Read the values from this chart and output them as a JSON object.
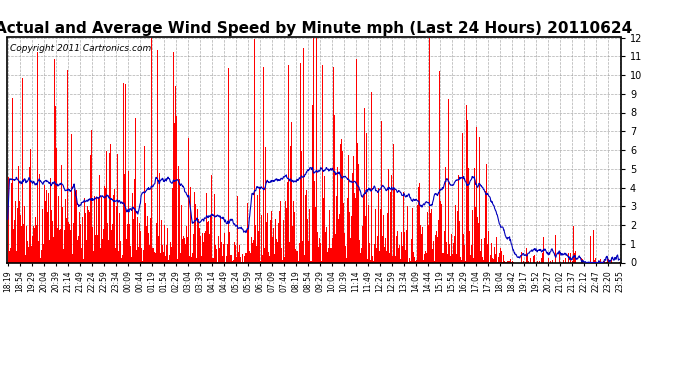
{
  "title": "Actual and Average Wind Speed by Minute mph (Last 24 Hours) 20110624",
  "copyright": "Copyright 2011 Cartronics.com",
  "ylim": [
    0.0,
    12.0
  ],
  "yticks": [
    0.0,
    1.0,
    2.0,
    3.0,
    4.0,
    5.0,
    6.0,
    7.0,
    8.0,
    9.0,
    10.0,
    11.0,
    12.0
  ],
  "bar_color": "#FF0000",
  "line_color": "#0000BB",
  "bg_color": "#FFFFFF",
  "grid_color": "#999999",
  "title_fontsize": 11,
  "copyright_fontsize": 6.5,
  "x_tick_labels": [
    "18:19",
    "18:54",
    "19:29",
    "20:04",
    "20:39",
    "21:14",
    "21:49",
    "22:24",
    "22:59",
    "23:34",
    "00:09",
    "00:44",
    "01:19",
    "01:54",
    "02:29",
    "03:04",
    "03:39",
    "04:14",
    "04:49",
    "05:24",
    "05:59",
    "06:34",
    "07:09",
    "07:44",
    "08:19",
    "08:54",
    "09:29",
    "10:04",
    "10:39",
    "11:14",
    "11:49",
    "12:24",
    "12:59",
    "13:34",
    "14:09",
    "14:44",
    "15:19",
    "15:54",
    "16:29",
    "17:04",
    "17:39",
    "18:04",
    "18:42",
    "19:17",
    "19:52",
    "20:27",
    "21:02",
    "21:37",
    "22:12",
    "22:47",
    "23:20",
    "23:55"
  ],
  "n_points": 1440,
  "dropoff_point": 1130,
  "avg_seed": 12345,
  "bar_seed": 99
}
